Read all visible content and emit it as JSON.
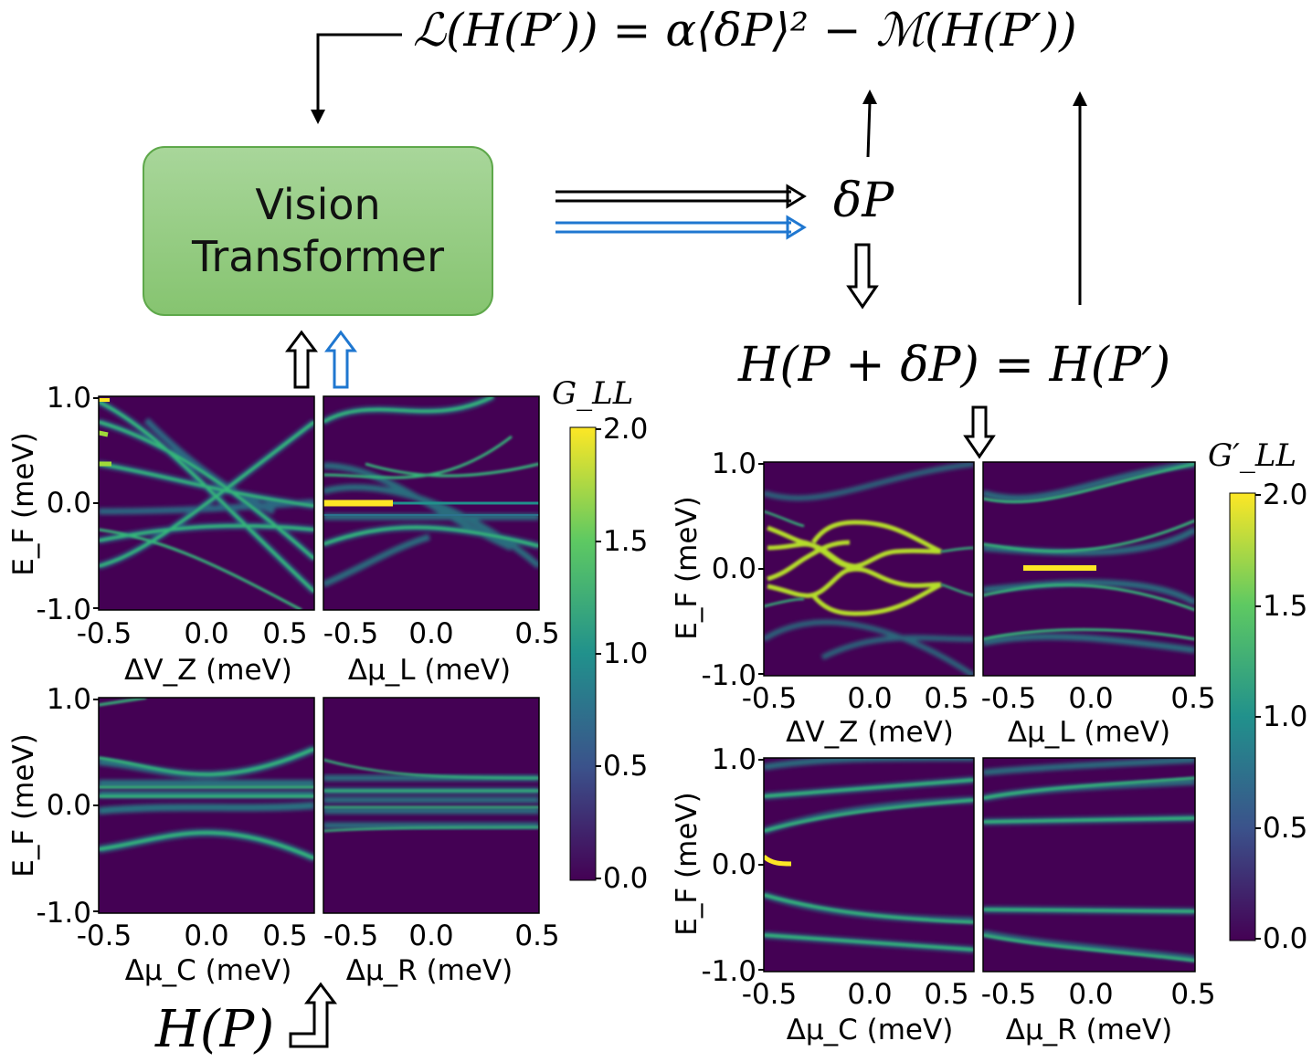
{
  "loss_equation": "ℒ(H(P′)) = α⟨δP⟩² − ℳ(H(P′))",
  "vit": {
    "line1": "Vision",
    "line2": "Transformer"
  },
  "delta_p": "δP",
  "update_equation": "H(P + δP) = H(P′)",
  "input_label": "H(P)",
  "colors": {
    "viridis_low": "#440154",
    "viridis_high": "#fde725",
    "box_fill": "#9fd08c",
    "box_edge": "#5ea84a",
    "blue_arrow": "#1f77d0"
  },
  "left_group": {
    "colorbar_label": "G_LL",
    "colorbar_ticks": [
      "2.0",
      "1.5",
      "1.0",
      "0.5",
      "0.0"
    ],
    "y_ticks": [
      "1.0",
      "0.0",
      "-1.0"
    ],
    "y_label": "E_F (meV)",
    "panels": [
      {
        "x_label": "ΔV_Z (meV)",
        "x_ticks": [
          "-0.5",
          "0.0",
          "0.5"
        ]
      },
      {
        "x_label": "Δμ_L (meV)",
        "x_ticks": [
          "-0.5",
          "0.0",
          "0.5"
        ]
      },
      {
        "x_label": "Δμ_C (meV)",
        "x_ticks": [
          "-0.5",
          "0.0",
          "0.5"
        ]
      },
      {
        "x_label": "Δμ_R (meV)",
        "x_ticks": [
          "-0.5",
          "0.0",
          "0.5"
        ]
      }
    ]
  },
  "right_group": {
    "colorbar_label": "G′_LL",
    "colorbar_ticks": [
      "2.0",
      "1.5",
      "1.0",
      "0.5",
      "0.0"
    ],
    "y_ticks": [
      "1.0",
      "0.0",
      "-1.0"
    ],
    "y_label": "E_F (meV)",
    "panels": [
      {
        "x_label": "ΔV_Z (meV)",
        "x_ticks": [
          "-0.5",
          "0.0",
          "0.5"
        ]
      },
      {
        "x_label": "Δμ_L (meV)",
        "x_ticks": [
          "-0.5",
          "0.0",
          "0.5"
        ]
      },
      {
        "x_label": "Δμ_C (meV)",
        "x_ticks": [
          "-0.5",
          "0.0",
          "0.5"
        ]
      },
      {
        "x_label": "Δμ_R (meV)",
        "x_ticks": [
          "-0.5",
          "0.0",
          "0.5"
        ]
      }
    ]
  }
}
